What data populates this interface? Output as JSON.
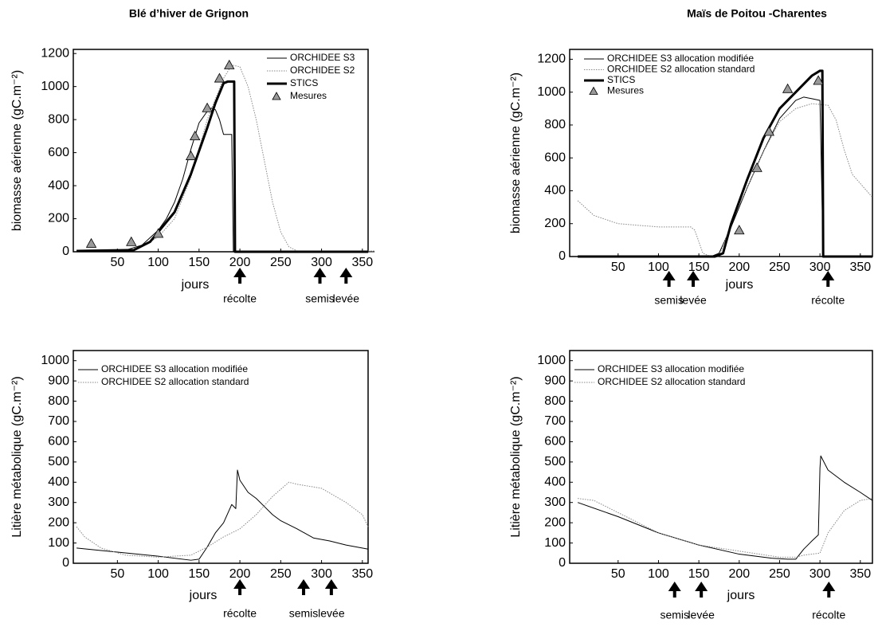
{
  "chart_data": [
    {
      "type": "line",
      "title": "Blé d’hiver de Grignon",
      "ylabel": "biomasse aérienne (gC.m⁻²)",
      "xlabel": "jours",
      "xlim": [
        -4,
        357
      ],
      "ylim": [
        0,
        1225
      ],
      "xticks": [
        50,
        100,
        150,
        200,
        250,
        300,
        350
      ],
      "yticks": [
        0,
        200,
        400,
        600,
        800,
        1000,
        1200
      ],
      "legend": "upper right",
      "series": [
        {
          "name": "ORCHIDEE S3",
          "color": "#000000",
          "line_style": "solid",
          "line_width": 1,
          "x": [
            0,
            60,
            80,
            100,
            110,
            120,
            130,
            140,
            150,
            160,
            165,
            170,
            175,
            180,
            185,
            190,
            192,
            365
          ],
          "values": [
            5,
            10,
            40,
            130,
            200,
            300,
            440,
            620,
            780,
            850,
            870,
            860,
            800,
            710,
            710,
            710,
            0,
            0
          ]
        },
        {
          "name": "ORCHIDEE S2",
          "color": "#888888",
          "line_style": "dotted",
          "line_width": 1,
          "x": [
            0,
            60,
            80,
            100,
            120,
            140,
            160,
            180,
            190,
            200,
            210,
            220,
            230,
            240,
            250,
            260,
            270,
            365
          ],
          "values": [
            5,
            10,
            30,
            90,
            200,
            450,
            800,
            1050,
            1130,
            1120,
            1000,
            800,
            550,
            300,
            120,
            30,
            5,
            5
          ]
        },
        {
          "name": "STICS",
          "color": "#000000",
          "line_style": "solid",
          "line_width": 3,
          "x": [
            0,
            70,
            90,
            100,
            120,
            140,
            160,
            170,
            180,
            185,
            190,
            193,
            194,
            357
          ],
          "values": [
            5,
            10,
            60,
            120,
            240,
            470,
            750,
            900,
            1020,
            1030,
            1030,
            1030,
            0,
            0
          ]
        },
        {
          "name": "Mesures",
          "color": "#999999",
          "line_style": "none",
          "marker": "triangle",
          "x": [
            18,
            67,
            100,
            140,
            145,
            160,
            175,
            187
          ],
          "values": [
            50,
            60,
            110,
            580,
            700,
            870,
            1050,
            1130
          ]
        }
      ],
      "annotations": [
        {
          "x": 200,
          "text": "récolte"
        },
        {
          "x": 298,
          "text": "semis"
        },
        {
          "x": 330,
          "text": "levée"
        }
      ]
    },
    {
      "type": "line",
      "title": "Maïs de Poitou -Charentes",
      "ylabel": "biomasse aérienne (gC.m⁻²)",
      "xlabel": "jours",
      "xlim": [
        -10,
        365
      ],
      "ylim": [
        0,
        1260
      ],
      "xticks": [
        50,
        100,
        150,
        200,
        250,
        300,
        350
      ],
      "yticks": [
        0,
        200,
        400,
        600,
        800,
        1000,
        1200
      ],
      "legend": "upper left",
      "series": [
        {
          "name": "ORCHIDEE S3 allocation modifiée",
          "color": "#000000",
          "line_style": "solid",
          "line_width": 1,
          "x": [
            0,
            165,
            175,
            190,
            210,
            230,
            250,
            270,
            280,
            290,
            300,
            304,
            365
          ],
          "values": [
            0,
            0,
            20,
            180,
            420,
            640,
            840,
            950,
            970,
            960,
            950,
            0,
            0
          ]
        },
        {
          "name": "ORCHIDEE S2 allocation standard",
          "color": "#888888",
          "line_style": "dotted",
          "line_width": 1,
          "x": [
            0,
            20,
            50,
            100,
            140,
            145,
            155,
            165,
            175,
            190,
            210,
            230,
            250,
            270,
            290,
            310,
            320,
            330,
            340,
            365
          ],
          "values": [
            340,
            250,
            200,
            180,
            180,
            160,
            20,
            0,
            0,
            200,
            420,
            640,
            820,
            900,
            930,
            920,
            830,
            650,
            500,
            360
          ]
        },
        {
          "name": "STICS",
          "color": "#000000",
          "line_style": "solid",
          "line_width": 3,
          "x": [
            0,
            170,
            180,
            190,
            210,
            230,
            250,
            270,
            290,
            300,
            303,
            304,
            365
          ],
          "values": [
            0,
            0,
            20,
            200,
            470,
            720,
            900,
            1000,
            1100,
            1130,
            1130,
            0,
            0
          ]
        },
        {
          "name": "Mesures",
          "color": "#999999",
          "line_style": "none",
          "marker": "triangle",
          "x": [
            200,
            222,
            237,
            260,
            298
          ],
          "values": [
            160,
            540,
            760,
            1020,
            1070
          ]
        }
      ],
      "annotations": [
        {
          "x": 113,
          "text": "semis"
        },
        {
          "x": 143,
          "text": "levée"
        },
        {
          "x": 310,
          "text": "récolte"
        }
      ]
    },
    {
      "type": "line",
      "ylabel": "Litière métabolique  (gC.m⁻²)",
      "xlabel": "jours",
      "xlim": [
        -4,
        357
      ],
      "ylim": [
        0,
        1050
      ],
      "xticks": [
        50,
        100,
        150,
        200,
        250,
        300,
        350
      ],
      "yticks": [
        0,
        100,
        200,
        300,
        400,
        500,
        600,
        700,
        800,
        900,
        1000
      ],
      "legend": "upper left",
      "series": [
        {
          "name": "ORCHIDEE S3 allocation modifiée",
          "color": "#000000",
          "line_style": "solid",
          "line_width": 1,
          "x": [
            0,
            50,
            100,
            140,
            150,
            160,
            170,
            180,
            190,
            195,
            197,
            200,
            210,
            220,
            230,
            240,
            250,
            270,
            290,
            310,
            330,
            357
          ],
          "values": [
            75,
            55,
            35,
            15,
            20,
            80,
            150,
            200,
            290,
            270,
            460,
            410,
            350,
            320,
            280,
            240,
            210,
            170,
            125,
            110,
            90,
            70
          ]
        },
        {
          "name": "ORCHIDEE S2 allocation standard",
          "color": "#888888",
          "line_style": "dotted",
          "line_width": 1,
          "x": [
            0,
            10,
            30,
            60,
            100,
            140,
            160,
            180,
            200,
            220,
            240,
            260,
            270,
            300,
            330,
            350,
            357
          ],
          "values": [
            180,
            130,
            75,
            40,
            30,
            40,
            80,
            130,
            170,
            240,
            330,
            400,
            390,
            370,
            300,
            240,
            180
          ]
        }
      ],
      "annotations": [
        {
          "x": 200,
          "text": "récolte"
        },
        {
          "x": 278,
          "text": "semis"
        },
        {
          "x": 312,
          "text": "levée"
        }
      ]
    },
    {
      "type": "line",
      "ylabel": "Litière métabolique  (gC.m⁻²)",
      "xlabel": "jours",
      "xlim": [
        -10,
        365
      ],
      "ylim": [
        0,
        1050
      ],
      "xticks": [
        50,
        100,
        150,
        200,
        250,
        300,
        350
      ],
      "yticks": [
        0,
        100,
        200,
        300,
        400,
        500,
        600,
        700,
        800,
        900,
        1000
      ],
      "legend": "upper left",
      "series": [
        {
          "name": "ORCHIDEE S3 allocation modifiée",
          "color": "#000000",
          "line_style": "solid",
          "line_width": 1,
          "x": [
            0,
            50,
            100,
            150,
            200,
            240,
            260,
            270,
            280,
            290,
            298,
            300,
            301,
            310,
            330,
            350,
            365
          ],
          "values": [
            300,
            230,
            150,
            90,
            45,
            25,
            20,
            20,
            70,
            110,
            140,
            470,
            530,
            460,
            400,
            350,
            310
          ]
        },
        {
          "name": "ORCHIDEE S2 allocation standard",
          "color": "#888888",
          "line_style": "dotted",
          "line_width": 1,
          "x": [
            0,
            20,
            50,
            100,
            150,
            200,
            250,
            270,
            280,
            290,
            300,
            310,
            330,
            350,
            365
          ],
          "values": [
            320,
            310,
            250,
            150,
            90,
            60,
            30,
            30,
            40,
            45,
            50,
            150,
            260,
            310,
            320
          ]
        }
      ],
      "annotations": [
        {
          "x": 120,
          "text": "semis"
        },
        {
          "x": 153,
          "text": "levée"
        },
        {
          "x": 311,
          "text": "récolte"
        }
      ]
    }
  ]
}
